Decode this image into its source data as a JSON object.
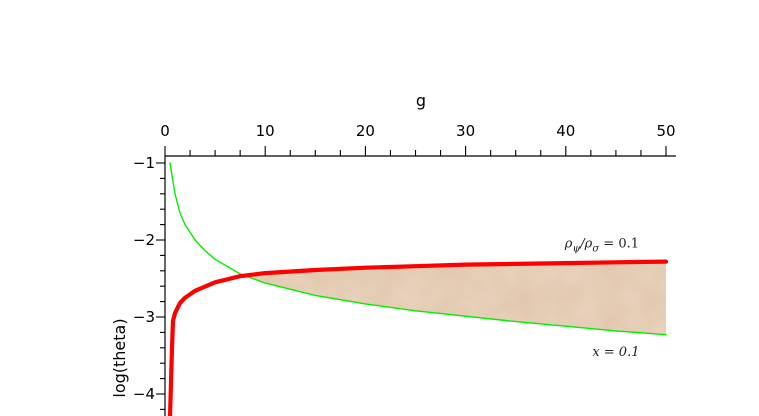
{
  "chart_data": {
    "type": "line",
    "xlabel": "g",
    "ylabel": "log(theta)",
    "x_axis_position": "top",
    "xlim": [
      0,
      50
    ],
    "ylim": [
      -4.3,
      -0.9
    ],
    "x_ticks": [
      0,
      10,
      20,
      30,
      40,
      50
    ],
    "y_ticks": [
      -1,
      -2,
      -3,
      -4
    ],
    "grid": false,
    "series": [
      {
        "name": "ρψ/ρσ = 0.1",
        "color": "#ff0000",
        "x": [
          0.5,
          0.6,
          0.7,
          0.8,
          1,
          1.5,
          2,
          3,
          5,
          7.5,
          10,
          15,
          20,
          25,
          30,
          35,
          40,
          45,
          50
        ],
        "y": [
          -4.3,
          -3.85,
          -3.4,
          -3.05,
          -2.95,
          -2.82,
          -2.75,
          -2.66,
          -2.55,
          -2.47,
          -2.43,
          -2.39,
          -2.36,
          -2.34,
          -2.32,
          -2.31,
          -2.3,
          -2.29,
          -2.28
        ]
      },
      {
        "name": "x = 0.1",
        "color": "#00ee00",
        "x": [
          0.5,
          1,
          1.5,
          2,
          3,
          4,
          5,
          7.5,
          10,
          15,
          20,
          25,
          30,
          35,
          40,
          45,
          50
        ],
        "y": [
          -1.0,
          -1.4,
          -1.65,
          -1.8,
          -2.0,
          -2.14,
          -2.25,
          -2.44,
          -2.56,
          -2.72,
          -2.83,
          -2.92,
          -2.99,
          -3.06,
          -3.12,
          -3.18,
          -3.23
        ]
      }
    ],
    "annotations": [
      {
        "text_main": "ρ",
        "sub1": "ψ",
        "mid": "/ρ",
        "sub2": "σ",
        "tail": " = 0.1",
        "x": 45,
        "y": -2.03
      },
      {
        "text": "x = 0.1",
        "x": 45,
        "y": -3.44
      }
    ],
    "shaded_region": {
      "between": [
        "x = 0.1",
        "ρψ/ρσ = 0.1"
      ],
      "x_from": 7.5,
      "x_to": 50,
      "color": "#d9b89a"
    }
  }
}
